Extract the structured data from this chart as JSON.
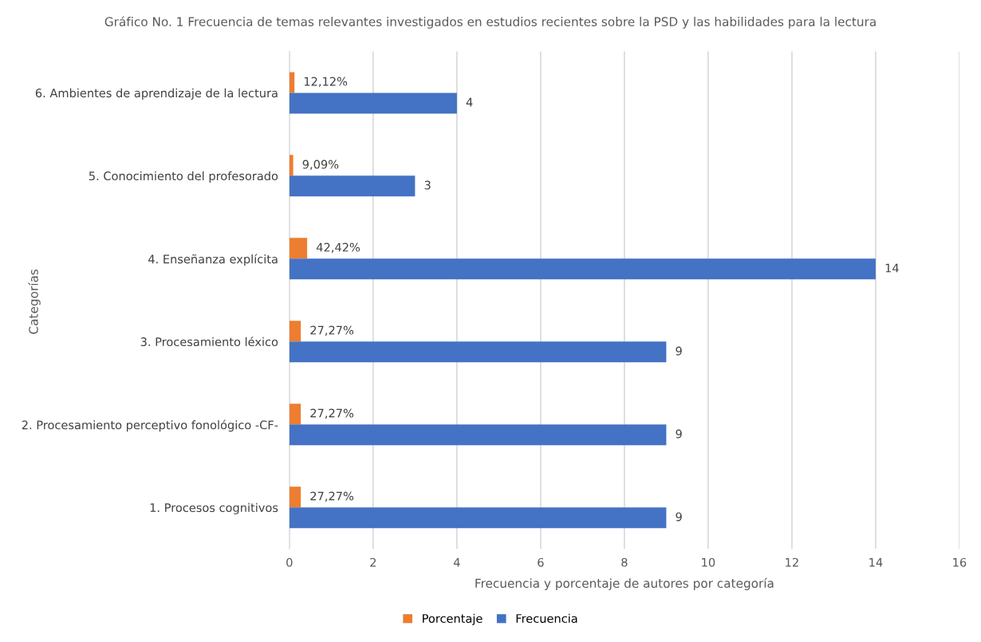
{
  "chart_data": {
    "type": "bar",
    "orientation": "horizontal",
    "title": "Gráfico No. 1 Frecuencia de temas relevantes investigados en estudios recientes sobre la PSD y las habilidades para la lectura",
    "xlabel": "Frecuencia y porcentaje de autores por categoría",
    "ylabel": "Categorías",
    "categories": [
      "6. Ambientes de aprendizaje de la lectura",
      "5. Conocimiento del profesorado",
      "4. Enseñanza explícita",
      "3. Procesamiento léxico",
      "2. Procesamiento perceptivo fonológico -CF-",
      "1. Procesos cognitivos"
    ],
    "series": [
      {
        "name": "Porcentaje",
        "color": "#ed7d31",
        "values": [
          0.1212,
          0.0909,
          0.4242,
          0.2727,
          0.2727,
          0.2727
        ],
        "value_labels": [
          "12,12%",
          "9,09%",
          "42,42%",
          "27,27%",
          "27,27%",
          "27,27%"
        ]
      },
      {
        "name": "Frecuencia",
        "color": "#4472c4",
        "values": [
          4,
          3,
          14,
          9,
          9,
          9
        ],
        "value_labels": [
          "4",
          "3",
          "14",
          "9",
          "9",
          "9"
        ]
      }
    ],
    "xlim": [
      0,
      16
    ],
    "xticks": [
      0,
      2,
      4,
      6,
      8,
      10,
      12,
      14,
      16
    ],
    "grid": "x",
    "legend": "bottom"
  }
}
